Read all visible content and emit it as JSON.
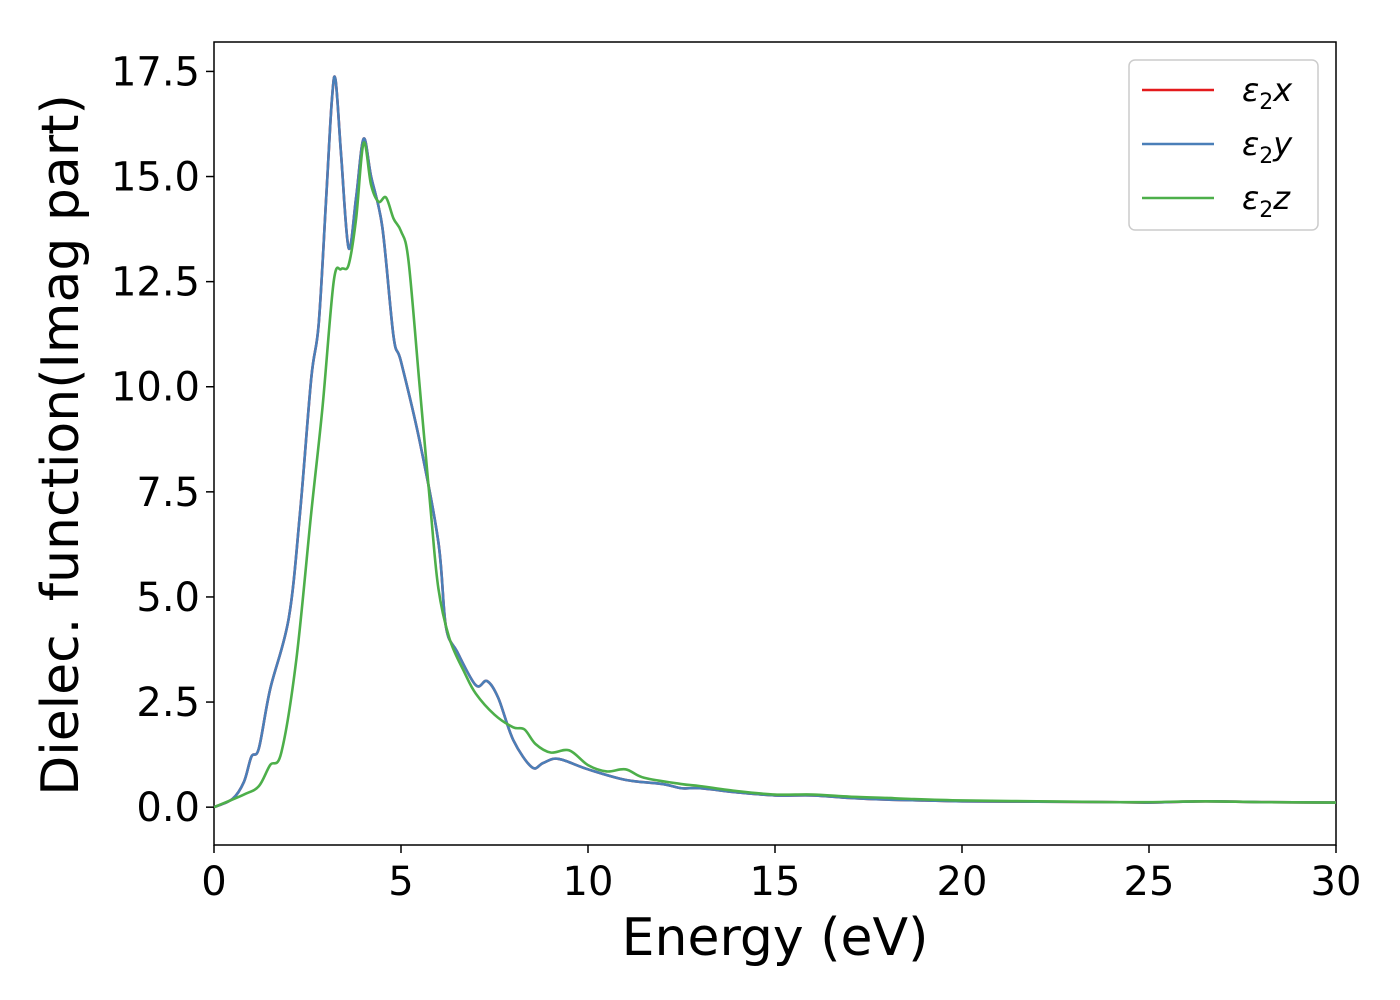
{
  "chart_data": {
    "type": "line",
    "xlabel": "Energy (eV)",
    "ylabel": "Dielec. function(Imag part)",
    "xlim": [
      0,
      30
    ],
    "ylim": [
      -0.9,
      18.2
    ],
    "xticks": [
      0,
      5,
      10,
      15,
      20,
      25,
      30
    ],
    "xtick_labels": [
      "0",
      "5",
      "10",
      "15",
      "20",
      "25",
      "30"
    ],
    "yticks": [
      0,
      2.5,
      5,
      7.5,
      10,
      12.5,
      15,
      17.5
    ],
    "ytick_labels": [
      "0.0",
      "2.5",
      "5.0",
      "7.5",
      "10.0",
      "12.5",
      "15.0",
      "17.5"
    ],
    "grid": false,
    "legend_position": "top-right",
    "series": [
      {
        "name": "ε2x",
        "legend_main": "ε",
        "legend_sub": "2",
        "legend_var": "x",
        "color": "#e41a1c",
        "x": [
          0,
          0.5,
          0.8,
          1.0,
          1.2,
          1.5,
          2.0,
          2.3,
          2.6,
          2.8,
          3.0,
          3.15,
          3.25,
          3.4,
          3.6,
          3.8,
          4.0,
          4.2,
          4.5,
          4.8,
          5.0,
          5.5,
          6.0,
          6.2,
          6.5,
          7.0,
          7.3,
          7.6,
          8.0,
          8.5,
          8.8,
          9.2,
          10.0,
          11.0,
          12.0,
          12.5,
          13.0,
          14.0,
          15.0,
          16.0,
          17.0,
          18.0,
          19.0,
          20.0,
          22.0,
          24.0,
          25.0,
          26.5,
          28.0,
          30.0
        ],
        "y": [
          0.0,
          0.2,
          0.6,
          1.2,
          1.4,
          2.8,
          4.5,
          7.0,
          10.2,
          11.5,
          14.5,
          16.8,
          17.3,
          15.5,
          13.3,
          14.5,
          15.9,
          15.0,
          13.8,
          11.2,
          10.6,
          8.7,
          6.3,
          4.3,
          3.7,
          2.9,
          3.0,
          2.6,
          1.6,
          0.95,
          1.05,
          1.15,
          0.9,
          0.65,
          0.55,
          0.45,
          0.45,
          0.35,
          0.28,
          0.28,
          0.22,
          0.18,
          0.16,
          0.14,
          0.13,
          0.12,
          0.11,
          0.14,
          0.12,
          0.11
        ]
      },
      {
        "name": "ε2y",
        "legend_main": "ε",
        "legend_sub": "2",
        "legend_var": "y",
        "color": "#4a7fb8",
        "x": [
          0,
          0.5,
          0.8,
          1.0,
          1.2,
          1.5,
          2.0,
          2.3,
          2.6,
          2.8,
          3.0,
          3.15,
          3.25,
          3.4,
          3.6,
          3.8,
          4.0,
          4.2,
          4.5,
          4.8,
          5.0,
          5.5,
          6.0,
          6.2,
          6.5,
          7.0,
          7.3,
          7.6,
          8.0,
          8.5,
          8.8,
          9.2,
          10.0,
          11.0,
          12.0,
          12.5,
          13.0,
          14.0,
          15.0,
          16.0,
          17.0,
          18.0,
          19.0,
          20.0,
          22.0,
          24.0,
          25.0,
          26.5,
          28.0,
          30.0
        ],
        "y": [
          0.0,
          0.2,
          0.6,
          1.2,
          1.4,
          2.8,
          4.5,
          7.0,
          10.2,
          11.5,
          14.5,
          16.8,
          17.3,
          15.5,
          13.3,
          14.5,
          15.9,
          15.0,
          13.8,
          11.2,
          10.6,
          8.7,
          6.3,
          4.3,
          3.7,
          2.9,
          3.0,
          2.6,
          1.6,
          0.95,
          1.05,
          1.15,
          0.9,
          0.65,
          0.55,
          0.45,
          0.45,
          0.35,
          0.28,
          0.28,
          0.22,
          0.18,
          0.16,
          0.14,
          0.13,
          0.12,
          0.11,
          0.14,
          0.12,
          0.11
        ]
      },
      {
        "name": "ε2z",
        "legend_main": "ε",
        "legend_sub": "2",
        "legend_var": "z",
        "color": "#4daf4a",
        "x": [
          0,
          0.8,
          1.2,
          1.5,
          1.8,
          2.2,
          2.6,
          2.9,
          3.2,
          3.4,
          3.6,
          3.8,
          4.0,
          4.2,
          4.4,
          4.6,
          4.8,
          5.0,
          5.2,
          5.5,
          5.8,
          6.0,
          6.3,
          6.7,
          7.0,
          7.5,
          8.0,
          8.3,
          8.6,
          9.0,
          9.5,
          10.0,
          10.5,
          11.0,
          11.5,
          12.5,
          13.0,
          14.0,
          15.0,
          16.0,
          17.0,
          18.0,
          18.5,
          20.0,
          22.0,
          24.0,
          25.0,
          26.5,
          28.0,
          30.0
        ],
        "y": [
          0.0,
          0.3,
          0.5,
          1.0,
          1.3,
          3.5,
          7.0,
          9.5,
          12.5,
          12.8,
          12.9,
          14.0,
          15.8,
          14.8,
          14.4,
          14.5,
          14.0,
          13.7,
          13.0,
          10.0,
          7.0,
          5.2,
          4.0,
          3.2,
          2.7,
          2.2,
          1.9,
          1.85,
          1.5,
          1.3,
          1.35,
          1.0,
          0.85,
          0.9,
          0.7,
          0.55,
          0.5,
          0.38,
          0.3,
          0.3,
          0.25,
          0.22,
          0.2,
          0.16,
          0.14,
          0.12,
          0.12,
          0.14,
          0.12,
          0.11
        ]
      }
    ]
  }
}
